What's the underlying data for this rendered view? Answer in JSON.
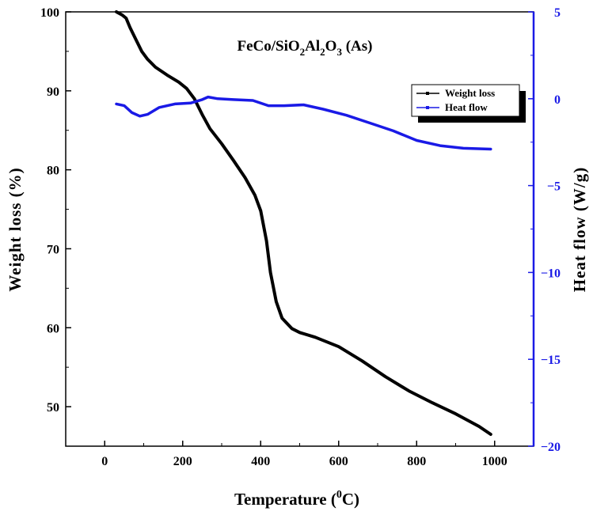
{
  "chart_data": {
    "type": "line",
    "title": {
      "main": "FeCo/SiO",
      "sub1": "2",
      "mid": "Al",
      "sub2": "2",
      "mid2": "O",
      "sub3": "3",
      "tail": " (As)"
    },
    "xlabel": {
      "main": "Temperature (",
      "sup": "0",
      "tail": "C)"
    },
    "ylabel_left": "Weight loss (%)",
    "ylabel_right": "Heat flow (W/g)",
    "xlim": [
      -100,
      1100
    ],
    "ylim_left": [
      45,
      100
    ],
    "ylim_right": [
      -20,
      5
    ],
    "x_ticks": [
      0,
      200,
      400,
      600,
      800,
      1000
    ],
    "y_left_ticks": [
      50,
      60,
      70,
      80,
      90,
      100
    ],
    "y_right_ticks": [
      -20,
      -15,
      -10,
      -5,
      0,
      5
    ],
    "legend": [
      "Weight loss",
      "Heat flow"
    ],
    "series": [
      {
        "name": "Weight loss",
        "axis": "left",
        "color": "#000000",
        "points": [
          [
            30,
            100
          ],
          [
            45,
            99.6
          ],
          [
            55,
            99.2
          ],
          [
            65,
            98.0
          ],
          [
            80,
            96.5
          ],
          [
            95,
            95.0
          ],
          [
            110,
            94.0
          ],
          [
            130,
            93.0
          ],
          [
            160,
            92.0
          ],
          [
            190,
            91.1
          ],
          [
            210,
            90.3
          ],
          [
            230,
            89.0
          ],
          [
            250,
            87.0
          ],
          [
            270,
            85.2
          ],
          [
            300,
            83.3
          ],
          [
            330,
            81.2
          ],
          [
            360,
            79.0
          ],
          [
            385,
            76.8
          ],
          [
            400,
            74.8
          ],
          [
            415,
            71.0
          ],
          [
            425,
            67.0
          ],
          [
            440,
            63.3
          ],
          [
            455,
            61.2
          ],
          [
            480,
            59.9
          ],
          [
            500,
            59.4
          ],
          [
            540,
            58.8
          ],
          [
            600,
            57.6
          ],
          [
            660,
            55.8
          ],
          [
            720,
            53.8
          ],
          [
            780,
            52.0
          ],
          [
            840,
            50.5
          ],
          [
            900,
            49.1
          ],
          [
            960,
            47.5
          ],
          [
            990,
            46.5
          ]
        ]
      },
      {
        "name": "Heat flow",
        "axis": "right",
        "color": "#1a1ae6",
        "points": [
          [
            30,
            -0.3
          ],
          [
            50,
            -0.4
          ],
          [
            70,
            -0.8
          ],
          [
            90,
            -1.0
          ],
          [
            110,
            -0.9
          ],
          [
            140,
            -0.5
          ],
          [
            180,
            -0.3
          ],
          [
            220,
            -0.25
          ],
          [
            250,
            -0.05
          ],
          [
            265,
            0.1
          ],
          [
            290,
            0.0
          ],
          [
            330,
            -0.05
          ],
          [
            380,
            -0.1
          ],
          [
            420,
            -0.4
          ],
          [
            460,
            -0.4
          ],
          [
            510,
            -0.35
          ],
          [
            560,
            -0.6
          ],
          [
            620,
            -0.95
          ],
          [
            680,
            -1.4
          ],
          [
            740,
            -1.85
          ],
          [
            800,
            -2.4
          ],
          [
            860,
            -2.7
          ],
          [
            920,
            -2.85
          ],
          [
            990,
            -2.9
          ]
        ]
      }
    ]
  }
}
